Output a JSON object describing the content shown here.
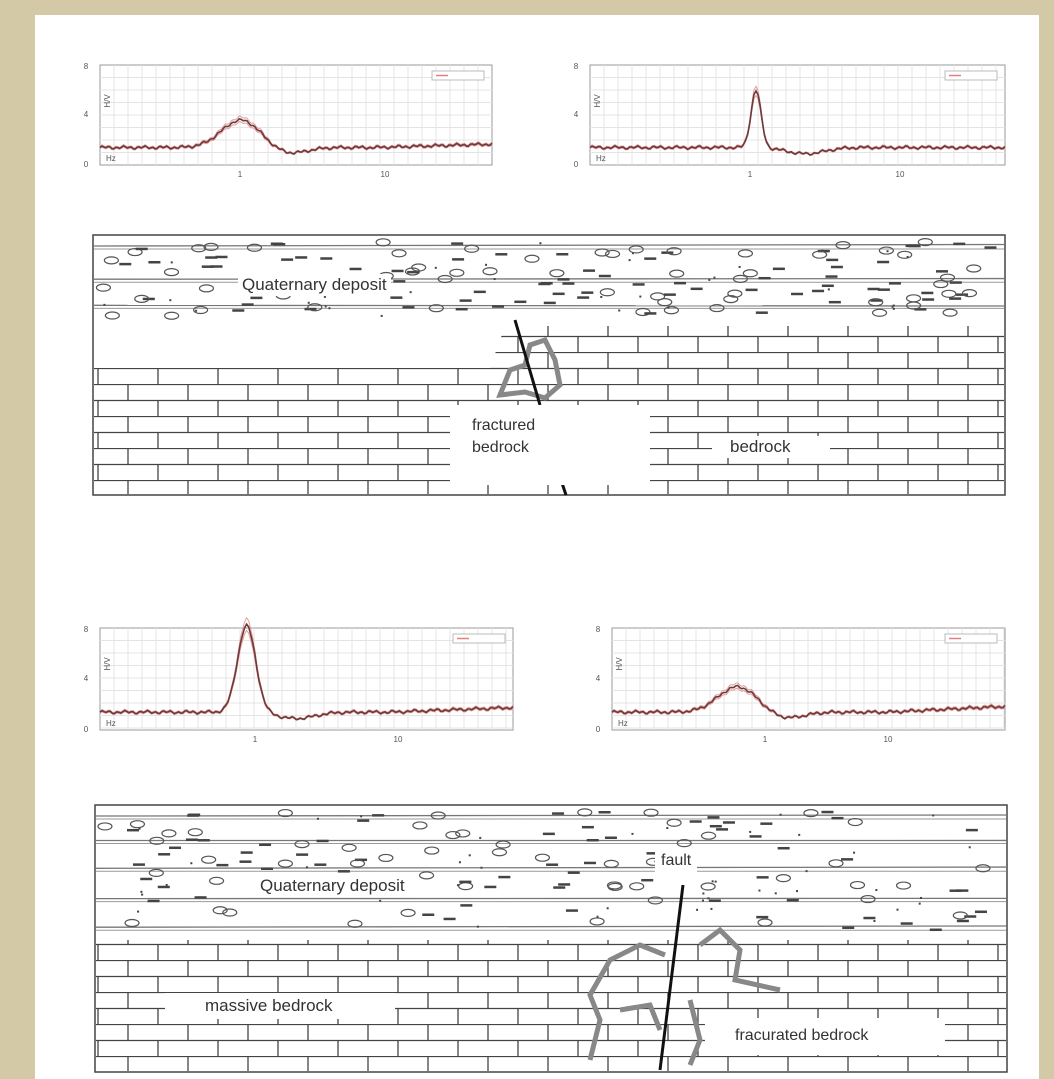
{
  "plots": [
    {
      "y_ticks": [
        "8",
        "4",
        "0"
      ],
      "y_label": "H/V",
      "x_unit": "Hz",
      "x_ticks": [
        "1",
        "10"
      ]
    },
    {
      "y_ticks": [
        "8",
        "4",
        "0"
      ],
      "y_label": "H/V",
      "x_unit": "Hz",
      "x_ticks": [
        "1",
        "10"
      ]
    },
    {
      "y_ticks": [
        "8",
        "4",
        "0"
      ],
      "y_label": "H/V",
      "x_unit": "Hz",
      "x_ticks": [
        "1",
        "10"
      ]
    },
    {
      "y_ticks": [
        "8",
        "4",
        "0"
      ],
      "y_label": "H/V",
      "x_unit": "Hz",
      "x_ticks": [
        "1",
        "10"
      ]
    }
  ],
  "sections": [
    {
      "labels": [
        "Quaternary deposit",
        "fractured bedrock",
        "bedrock"
      ]
    },
    {
      "labels": [
        "Quaternary deposit",
        "fault",
        "massive bedrock",
        "fracurated bedrock"
      ]
    }
  ]
}
